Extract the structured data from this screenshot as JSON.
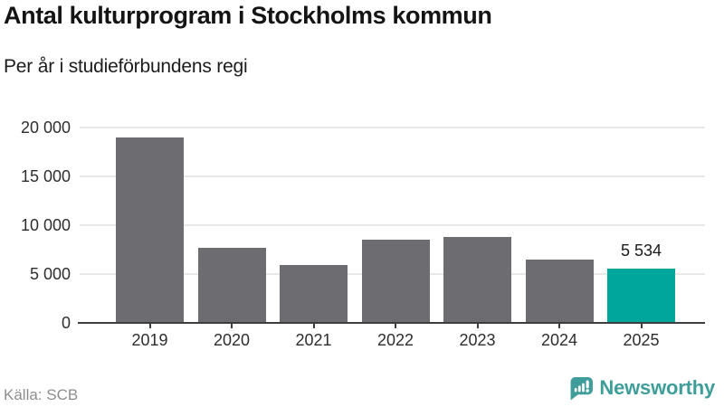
{
  "header": {
    "title": "Antal kulturprogram i Stockholms kommun",
    "subtitle": "Per år i studieförbundens regi"
  },
  "footer": {
    "source": "Källa: SCB",
    "brand": "Newsworthy",
    "logo_icon": "bar-chart-speech-bubble-icon"
  },
  "colors": {
    "bar_default": "#6c6c71",
    "bar_highlight": "#00a69c",
    "gridline": "#e8e8e8",
    "axis": "#3d3d3d",
    "tick_text": "#2e2e2e",
    "value_label_text": "#1a1a1a",
    "source_text": "#8d8d8d",
    "brand_teal": "#3f9e9a"
  },
  "chart_data": {
    "type": "bar",
    "title": "Antal kulturprogram i Stockholms kommun",
    "subtitle": "Per år i studieförbundens regi",
    "categories": [
      "2019",
      "2020",
      "2021",
      "2022",
      "2023",
      "2024",
      "2025"
    ],
    "values": [
      19000,
      7700,
      5900,
      8500,
      8800,
      6500,
      5534
    ],
    "highlight_index": 6,
    "value_labels": {
      "6": "5 534"
    },
    "yticks": [
      0,
      5000,
      10000,
      15000,
      20000
    ],
    "ytick_labels": [
      "0",
      "5 000",
      "10 000",
      "15 000",
      "20 000"
    ],
    "ylim": [
      0,
      20000
    ],
    "grid": true,
    "legend": false,
    "xlabel": "",
    "ylabel": ""
  }
}
